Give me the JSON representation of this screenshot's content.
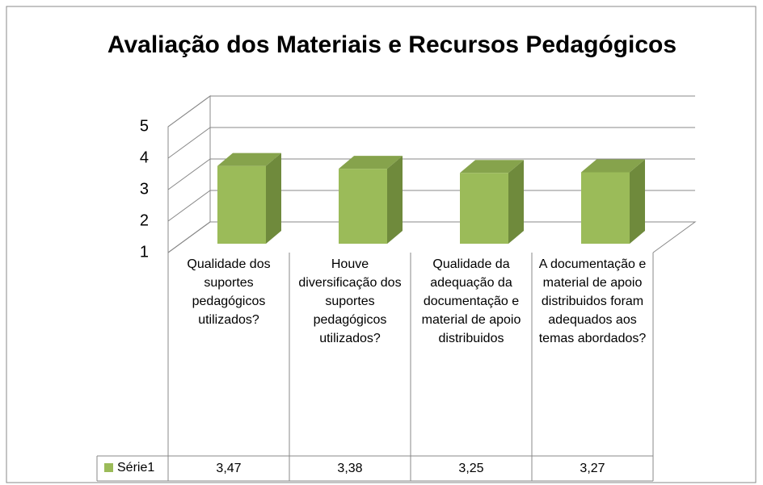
{
  "chart_data": {
    "type": "bar3d",
    "title": "Avaliação dos Materiais e Recursos Pedagógicos",
    "categories": [
      "Qualidade dos suportes pedagógicos utilizados?",
      "Houve diversificação dos suportes pedagógicos utilizados?",
      "Qualidade da adequação da documentação e material de apoio distribuidos",
      "A documentação e material de apoio distribuidos foram adequados aos temas abordados?"
    ],
    "series": [
      {
        "name": "Série1",
        "color": "#9bbb59",
        "values": [
          3.47,
          3.38,
          3.25,
          3.27
        ],
        "value_labels": [
          "3,47",
          "3,38",
          "3,25",
          "3,27"
        ]
      }
    ],
    "ylim": [
      1,
      5
    ],
    "yticks": [
      1,
      2,
      3,
      4,
      5
    ],
    "grid": true,
    "legend": "data-table"
  }
}
